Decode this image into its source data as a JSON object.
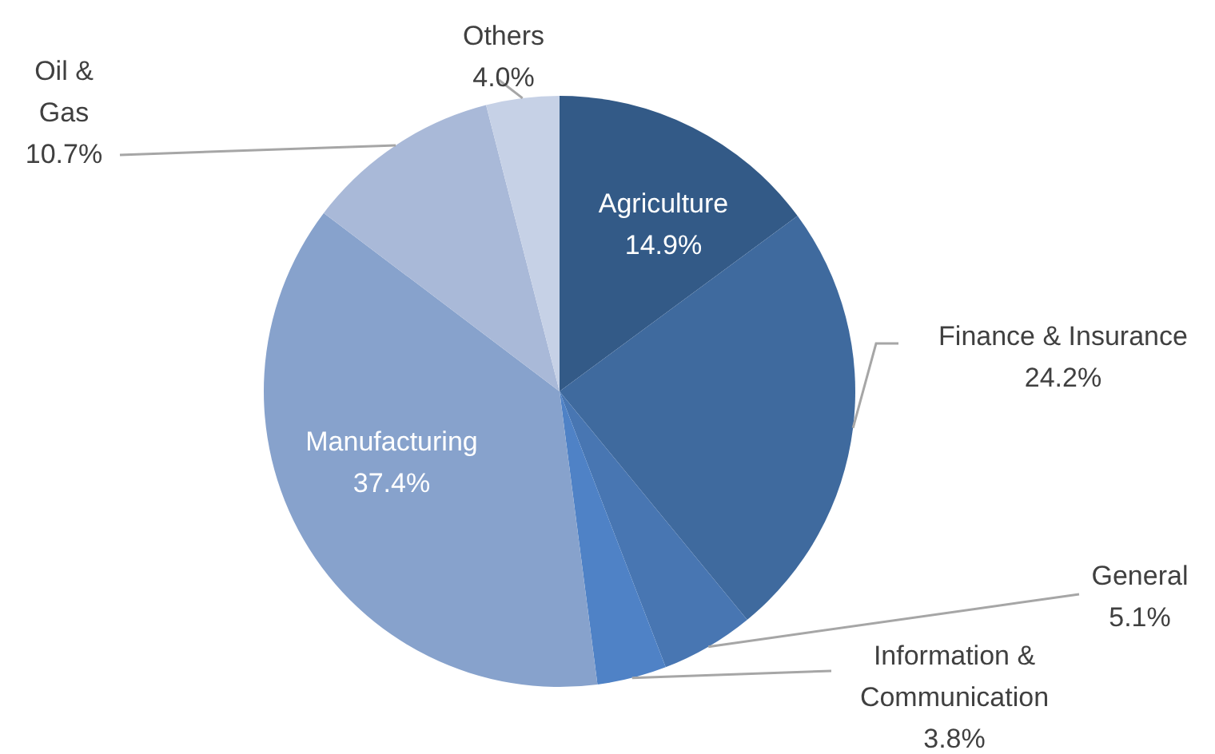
{
  "chart_data": {
    "type": "pie",
    "categories": [
      "Agriculture",
      "Finance & Insurance",
      "General",
      "Information & Communication",
      "Manufacturing",
      "Oil & Gas",
      "Others"
    ],
    "values": [
      14.9,
      24.2,
      5.1,
      3.8,
      37.4,
      10.7,
      4.0
    ],
    "colors": [
      "#335a87",
      "#3f6a9e",
      "#4876b2",
      "#4f82c6",
      "#87a2cc",
      "#a9b9d8",
      "#c6d1e6"
    ],
    "value_labels": [
      "14.9%",
      "24.2%",
      "5.1%",
      "3.8%",
      "37.4%",
      "10.7%",
      "4.0%"
    ]
  }
}
